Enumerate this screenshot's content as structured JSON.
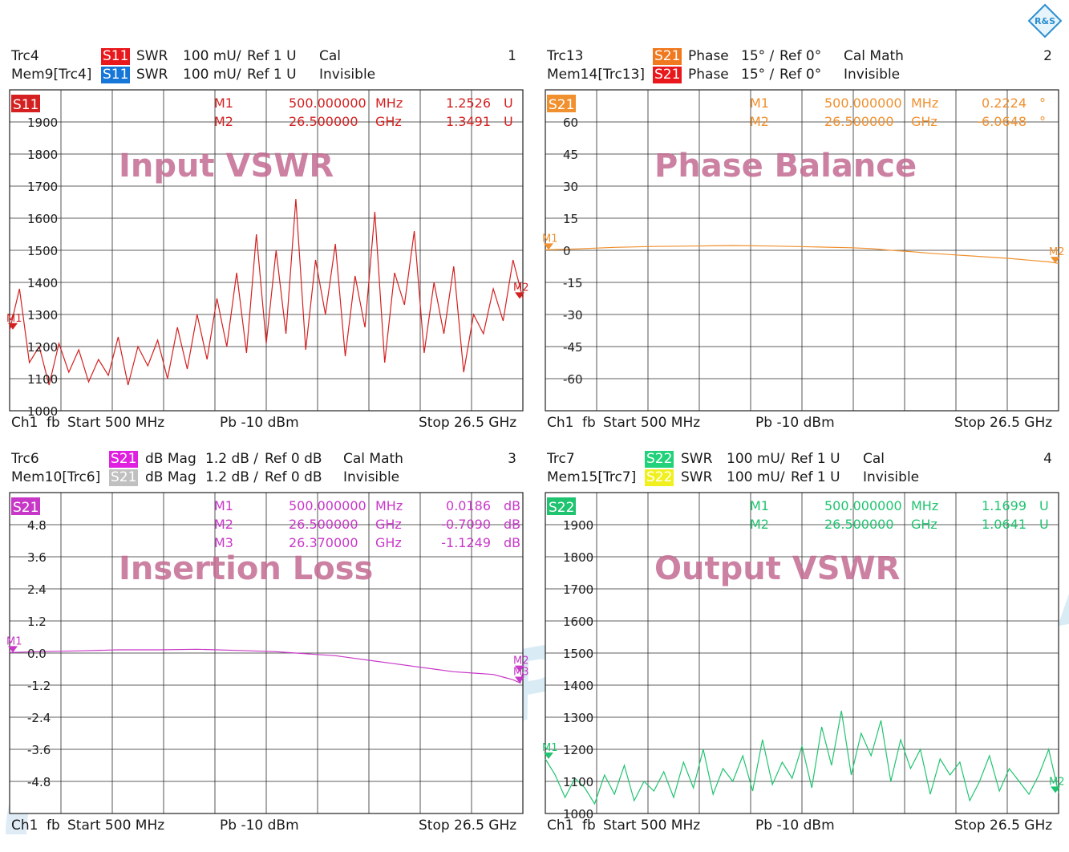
{
  "panels": [
    {
      "id": "1",
      "trace": {
        "name": "Trc4",
        "param": "S11",
        "color": "#e8181c",
        "format": "SWR",
        "scale": "100 mU/",
        "ref": "Ref 1 U",
        "cal": "Cal"
      },
      "memory": {
        "name": "Mem9[Trc4]",
        "param": "S11",
        "color": "#1677d8",
        "format": "SWR",
        "scale": "100 mU/",
        "ref": "Ref 1 U",
        "cal": "Invisible"
      },
      "footer": {
        "channel": "Ch1",
        "mode": "fb",
        "start": "Start  500 MHz",
        "power": "Pb  -10 dBm",
        "stop": "Stop  26.5 GHz"
      }
    },
    {
      "id": "2",
      "trace": {
        "name": "Trc13",
        "param": "S21",
        "color": "#f0781e",
        "format": "Phase",
        "scale": "15° /",
        "ref": "Ref 0°",
        "cal": "Cal Math"
      },
      "memory": {
        "name": "Mem14[Trc13]",
        "param": "S21",
        "color": "#e8181c",
        "format": "Phase",
        "scale": "15° /",
        "ref": "Ref 0°",
        "cal": "Invisible"
      },
      "footer": {
        "channel": "Ch1",
        "mode": "fb",
        "start": "Start  500 MHz",
        "power": "Pb  -10 dBm",
        "stop": "Stop  26.5 GHz"
      }
    },
    {
      "id": "3",
      "trace": {
        "name": "Trc6",
        "param": "S21",
        "color": "#e020e0",
        "format": "dB Mag",
        "scale": "1.2 dB /",
        "ref": "Ref 0 dB",
        "cal": "Cal Math"
      },
      "memory": {
        "name": "Mem10[Trc6]",
        "param": "S21",
        "color": "#c0c0c0",
        "format": "dB Mag",
        "scale": "1.2 dB /",
        "ref": "Ref 0 dB",
        "cal": "Invisible"
      },
      "footer": {
        "channel": "Ch1",
        "mode": "fb",
        "start": "Start  500 MHz",
        "power": "Pb  -10 dBm",
        "stop": "Stop  26.5 GHz"
      }
    },
    {
      "id": "4",
      "trace": {
        "name": "Trc7",
        "param": "S22",
        "color": "#22d27a",
        "format": "SWR",
        "scale": "100 mU/",
        "ref": "Ref 1 U",
        "cal": "Cal"
      },
      "memory": {
        "name": "Mem15[Trc7]",
        "param": "S22",
        "color": "#f0f020",
        "format": "SWR",
        "scale": "100 mU/",
        "ref": "Ref 1 U",
        "cal": "Invisible"
      },
      "footer": {
        "channel": "Ch1",
        "mode": "fb",
        "start": "Start  500 MHz",
        "power": "Pb  -10 dBm",
        "stop": "Stop  26.5 GHz"
      }
    }
  ],
  "chart_data": [
    {
      "type": "line",
      "title": "Input VSWR",
      "color": "#d42020",
      "param": "S11",
      "xlim": [
        0.5,
        26.5
      ],
      "x_unit": "GHz",
      "ylim": [
        1000,
        2000
      ],
      "yticks": [
        1900,
        1800,
        1700,
        1600,
        1500,
        1400,
        1300,
        1200,
        1100,
        1000
      ],
      "ytick_labels": [
        "1900",
        "1800",
        "1700",
        "1600",
        "1500",
        "1400",
        "1300",
        "1200",
        "1100",
        "1000"
      ],
      "markers": [
        {
          "name": "M1",
          "freq": "500.000000",
          "unit": "MHz",
          "value": "1.2526",
          "vunit": "U",
          "x": 0.5,
          "y": 1253
        },
        {
          "name": "M2",
          "freq": "26.500000",
          "unit": "GHz",
          "value": "1.3491",
          "vunit": "U",
          "x": 26.5,
          "y": 1349
        }
      ],
      "series": [
        {
          "x": [
            0.5,
            1.0,
            1.5,
            2.0,
            2.5,
            3.0,
            3.5,
            4.0,
            4.5,
            5.0,
            5.5,
            6.0,
            6.5,
            7.0,
            7.5,
            8.0,
            8.5,
            9.0,
            9.5,
            10.0,
            10.5,
            11.0,
            11.5,
            12.0,
            12.5,
            13.0,
            13.5,
            14.0,
            14.5,
            15.0,
            15.5,
            16.0,
            16.5,
            17.0,
            17.5,
            18.0,
            18.5,
            19.0,
            19.5,
            20.0,
            20.5,
            21.0,
            21.5,
            22.0,
            22.5,
            23.0,
            23.5,
            24.0,
            24.5,
            25.0,
            25.5,
            26.0,
            26.5
          ],
          "y": [
            1250,
            1380,
            1150,
            1200,
            1080,
            1210,
            1120,
            1190,
            1090,
            1160,
            1110,
            1230,
            1080,
            1200,
            1140,
            1220,
            1100,
            1260,
            1130,
            1300,
            1160,
            1350,
            1200,
            1430,
            1180,
            1550,
            1210,
            1500,
            1240,
            1660,
            1190,
            1470,
            1300,
            1520,
            1170,
            1420,
            1260,
            1620,
            1150,
            1430,
            1330,
            1560,
            1180,
            1400,
            1240,
            1450,
            1120,
            1300,
            1240,
            1380,
            1280,
            1470,
            1350
          ]
        }
      ]
    },
    {
      "type": "line",
      "title": "Phase Balance",
      "color": "#f0902e",
      "param": "S21",
      "xlim": [
        0.5,
        26.5
      ],
      "x_unit": "GHz",
      "ylim": [
        -75,
        75
      ],
      "yticks": [
        60,
        45,
        30,
        15,
        0,
        -15,
        -30,
        -45,
        -60
      ],
      "ytick_labels": [
        "60",
        "45",
        "30",
        "15",
        "0",
        "-15",
        "-30",
        "-45",
        "-60"
      ],
      "markers": [
        {
          "name": "M1",
          "freq": "500.000000",
          "unit": "MHz",
          "value": "0.2224",
          "vunit": "°",
          "x": 0.5,
          "y": 0.22
        },
        {
          "name": "M2",
          "freq": "26.500000",
          "unit": "GHz",
          "value": "-6.0648",
          "vunit": "°",
          "x": 26.5,
          "y": -6.06
        }
      ],
      "series": [
        {
          "x": [
            0.5,
            2,
            4,
            6,
            8,
            10,
            12,
            14,
            16,
            17,
            18,
            19,
            20,
            21,
            22,
            23,
            24,
            25,
            26,
            26.5
          ],
          "y": [
            0.2,
            0.6,
            1.4,
            1.8,
            2.0,
            2.2,
            2.0,
            1.6,
            1.2,
            0.8,
            0.0,
            -0.6,
            -1.4,
            -2.0,
            -2.6,
            -3.2,
            -3.8,
            -4.6,
            -5.4,
            -6.1
          ]
        }
      ]
    },
    {
      "type": "line",
      "title": "Insertion Loss",
      "color": "#c838c8",
      "param": "S21",
      "xlim": [
        0.5,
        26.5
      ],
      "x_unit": "GHz",
      "ylim": [
        -6.0,
        6.0
      ],
      "yticks": [
        4.8,
        3.6,
        2.4,
        1.2,
        0.0,
        -1.2,
        -2.4,
        -3.6,
        -4.8
      ],
      "ytick_labels": [
        "4.8",
        "3.6",
        "2.4",
        "1.2",
        "0.0",
        "-1.2",
        "-2.4",
        "-3.6",
        "-4.8"
      ],
      "markers": [
        {
          "name": "M1",
          "freq": "500.000000",
          "unit": "MHz",
          "value": "0.0186",
          "vunit": "dB",
          "x": 0.5,
          "y": 0.0186
        },
        {
          "name": "M2",
          "freq": "26.500000",
          "unit": "GHz",
          "value": "-0.7090",
          "vunit": "dB",
          "x": 26.5,
          "y": -0.709
        },
        {
          "name": "M3",
          "freq": "26.370000",
          "unit": "GHz",
          "value": "-1.1249",
          "vunit": "dB",
          "x": 26.37,
          "y": -1.1249
        }
      ],
      "series": [
        {
          "x": [
            0.5,
            2,
            4,
            6,
            8,
            10,
            12,
            14,
            15,
            16,
            17,
            18,
            19,
            20,
            21,
            22,
            23,
            24,
            25,
            25.5,
            26,
            26.37,
            26.5
          ],
          "y": [
            0.02,
            0.05,
            0.08,
            0.12,
            0.12,
            0.14,
            0.1,
            0.05,
            0.0,
            -0.05,
            -0.1,
            -0.2,
            -0.3,
            -0.4,
            -0.5,
            -0.6,
            -0.7,
            -0.75,
            -0.8,
            -0.9,
            -1.0,
            -1.12,
            -0.71
          ]
        }
      ]
    },
    {
      "type": "line",
      "title": "Output VSWR",
      "color": "#20c470",
      "param": "S22",
      "xlim": [
        0.5,
        26.5
      ],
      "x_unit": "GHz",
      "ylim": [
        1000,
        2000
      ],
      "yticks": [
        1900,
        1800,
        1700,
        1600,
        1500,
        1400,
        1300,
        1200,
        1100,
        1000
      ],
      "ytick_labels": [
        "1900",
        "1800",
        "1700",
        "1600",
        "1500",
        "1400",
        "1300",
        "1200",
        "1100",
        "1000"
      ],
      "markers": [
        {
          "name": "M1",
          "freq": "500.000000",
          "unit": "MHz",
          "value": "1.1699",
          "vunit": "U",
          "x": 0.5,
          "y": 1170
        },
        {
          "name": "M2",
          "freq": "26.500000",
          "unit": "GHz",
          "value": "1.0641",
          "vunit": "U",
          "x": 26.5,
          "y": 1064
        }
      ],
      "series": [
        {
          "x": [
            0.5,
            1.0,
            1.5,
            2.0,
            2.5,
            3.0,
            3.5,
            4.0,
            4.5,
            5.0,
            5.5,
            6.0,
            6.5,
            7.0,
            7.5,
            8.0,
            8.5,
            9.0,
            9.5,
            10.0,
            10.5,
            11.0,
            11.5,
            12.0,
            12.5,
            13.0,
            13.5,
            14.0,
            14.5,
            15.0,
            15.5,
            16.0,
            16.5,
            17.0,
            17.5,
            18.0,
            18.5,
            19.0,
            19.5,
            20.0,
            20.5,
            21.0,
            21.5,
            22.0,
            22.5,
            23.0,
            23.5,
            24.0,
            24.5,
            25.0,
            25.5,
            26.0,
            26.5
          ],
          "y": [
            1170,
            1120,
            1050,
            1110,
            1080,
            1030,
            1120,
            1060,
            1150,
            1040,
            1100,
            1070,
            1130,
            1050,
            1160,
            1080,
            1200,
            1060,
            1140,
            1100,
            1180,
            1070,
            1230,
            1090,
            1160,
            1110,
            1210,
            1080,
            1270,
            1150,
            1320,
            1120,
            1250,
            1180,
            1290,
            1100,
            1230,
            1140,
            1200,
            1060,
            1170,
            1120,
            1160,
            1040,
            1100,
            1180,
            1070,
            1140,
            1100,
            1060,
            1120,
            1200,
            1064
          ]
        }
      ]
    }
  ],
  "watermark": {
    "text": "TAP MICROWAVE",
    "logo": "TAP"
  }
}
